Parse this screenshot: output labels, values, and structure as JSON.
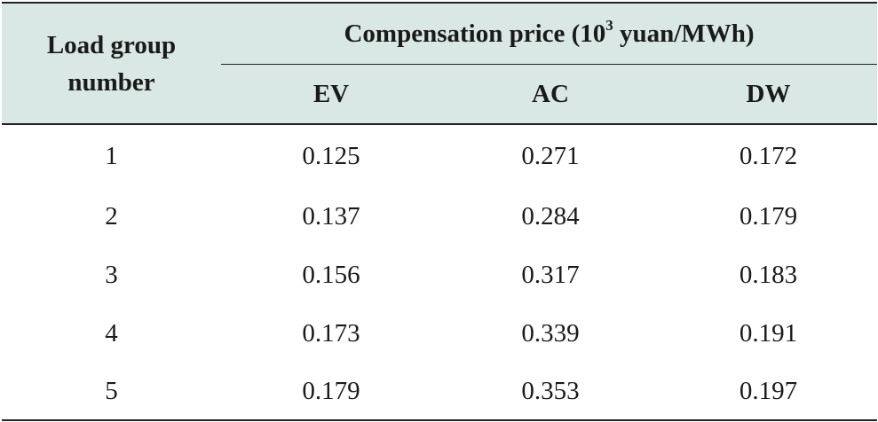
{
  "table": {
    "header": {
      "group_label": "Load group number",
      "span_label_pre": "Compensation price (10",
      "span_label_sup": "3",
      "span_label_post": " yuan/MWh)",
      "columns": [
        "EV",
        "AC",
        "DW"
      ]
    },
    "rows": [
      {
        "group": "1",
        "EV": "0.125",
        "AC": "0.271",
        "DW": "0.172"
      },
      {
        "group": "2",
        "EV": "0.137",
        "AC": "0.284",
        "DW": "0.179"
      },
      {
        "group": "3",
        "EV": "0.156",
        "AC": "0.317",
        "DW": "0.183"
      },
      {
        "group": "4",
        "EV": "0.173",
        "AC": "0.339",
        "DW": "0.191"
      },
      {
        "group": "5",
        "EV": "0.179",
        "AC": "0.353",
        "DW": "0.197"
      }
    ],
    "colors": {
      "header_background": "#d9e8e5",
      "rule": "#222222",
      "text": "#1a1a1a"
    }
  }
}
